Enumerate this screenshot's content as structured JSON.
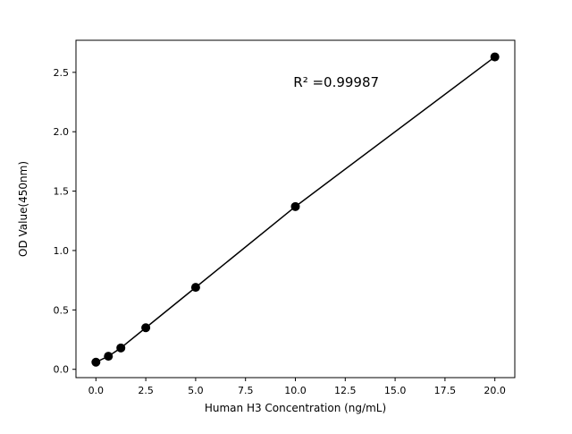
{
  "chart_data": {
    "type": "scatter",
    "title": "",
    "xlabel": "Human H3 Concentration (ng/mL)",
    "ylabel": "OD Value(450nm)",
    "x": [
      0,
      0.625,
      1.25,
      2.5,
      5,
      10,
      20
    ],
    "y": [
      0.06,
      0.11,
      0.18,
      0.35,
      0.69,
      1.37,
      2.63
    ],
    "line": true,
    "xlim": [
      -1,
      21
    ],
    "ylim": [
      -0.07,
      2.77
    ],
    "xticks": [
      0,
      2.5,
      5,
      7.5,
      10,
      12.5,
      15,
      17.5,
      20
    ],
    "xtick_labels": [
      "0.0",
      "2.5",
      "5.0",
      "7.5",
      "10.0",
      "12.5",
      "15.0",
      "17.5",
      "20.0"
    ],
    "yticks": [
      0,
      0.5,
      1.0,
      1.5,
      2.0,
      2.5
    ],
    "ytick_labels": [
      "0.0",
      "0.5",
      "1.0",
      "1.5",
      "2.0",
      "2.5"
    ],
    "annotation": {
      "text": "R² =0.99987",
      "x": 9.9,
      "y": 2.38
    },
    "grid": false,
    "legend": null,
    "marker_color": "#000000",
    "line_color": "#000000",
    "background": "#ffffff"
  }
}
